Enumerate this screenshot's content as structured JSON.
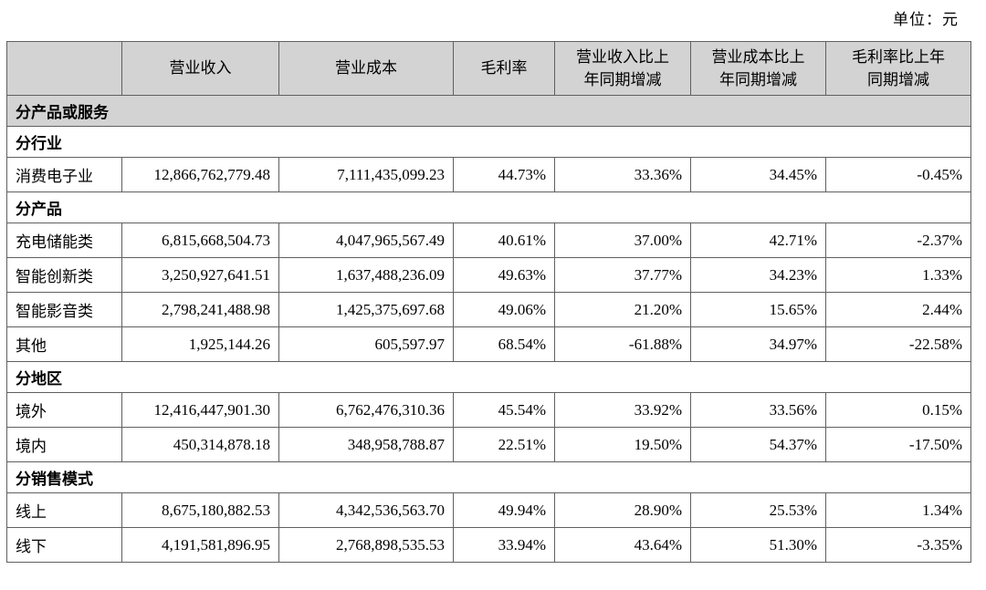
{
  "unit_label": "单位：元",
  "table": {
    "columns": [
      "",
      "营业收入",
      "营业成本",
      "毛利率",
      "营业收入比上\n年同期增减",
      "营业成本比上\n年同期增减",
      "毛利率比上年\n同期增减"
    ],
    "rows": [
      {
        "type": "section",
        "label": "分产品或服务",
        "shaded": true
      },
      {
        "type": "section",
        "label": "分行业",
        "shaded": false
      },
      {
        "type": "data",
        "label": "消费电子业",
        "values": [
          "12,866,762,779.48",
          "7,111,435,099.23",
          "44.73%",
          "33.36%",
          "34.45%",
          "-0.45%"
        ]
      },
      {
        "type": "section",
        "label": "分产品",
        "shaded": false
      },
      {
        "type": "data",
        "label": "充电储能类",
        "values": [
          "6,815,668,504.73",
          "4,047,965,567.49",
          "40.61%",
          "37.00%",
          "42.71%",
          "-2.37%"
        ]
      },
      {
        "type": "data",
        "label": "智能创新类",
        "values": [
          "3,250,927,641.51",
          "1,637,488,236.09",
          "49.63%",
          "37.77%",
          "34.23%",
          "1.33%"
        ]
      },
      {
        "type": "data",
        "label": "智能影音类",
        "values": [
          "2,798,241,488.98",
          "1,425,375,697.68",
          "49.06%",
          "21.20%",
          "15.65%",
          "2.44%"
        ]
      },
      {
        "type": "data",
        "label": "其他",
        "values": [
          "1,925,144.26",
          "605,597.97",
          "68.54%",
          "-61.88%",
          "34.97%",
          "-22.58%"
        ]
      },
      {
        "type": "section",
        "label": "分地区",
        "shaded": false
      },
      {
        "type": "data",
        "label": "境外",
        "values": [
          "12,416,447,901.30",
          "6,762,476,310.36",
          "45.54%",
          "33.92%",
          "33.56%",
          "0.15%"
        ]
      },
      {
        "type": "data",
        "label": "境内",
        "values": [
          "450,314,878.18",
          "348,958,788.87",
          "22.51%",
          "19.50%",
          "54.37%",
          "-17.50%"
        ]
      },
      {
        "type": "section",
        "label": "分销售模式",
        "shaded": false
      },
      {
        "type": "data",
        "label": "线上",
        "values": [
          "8,675,180,882.53",
          "4,342,536,563.70",
          "49.94%",
          "28.90%",
          "25.53%",
          "1.34%"
        ]
      },
      {
        "type": "data",
        "label": "线下",
        "values": [
          "4,191,581,896.95",
          "2,768,898,535.53",
          "33.94%",
          "43.64%",
          "51.30%",
          "-3.35%"
        ]
      }
    ]
  }
}
